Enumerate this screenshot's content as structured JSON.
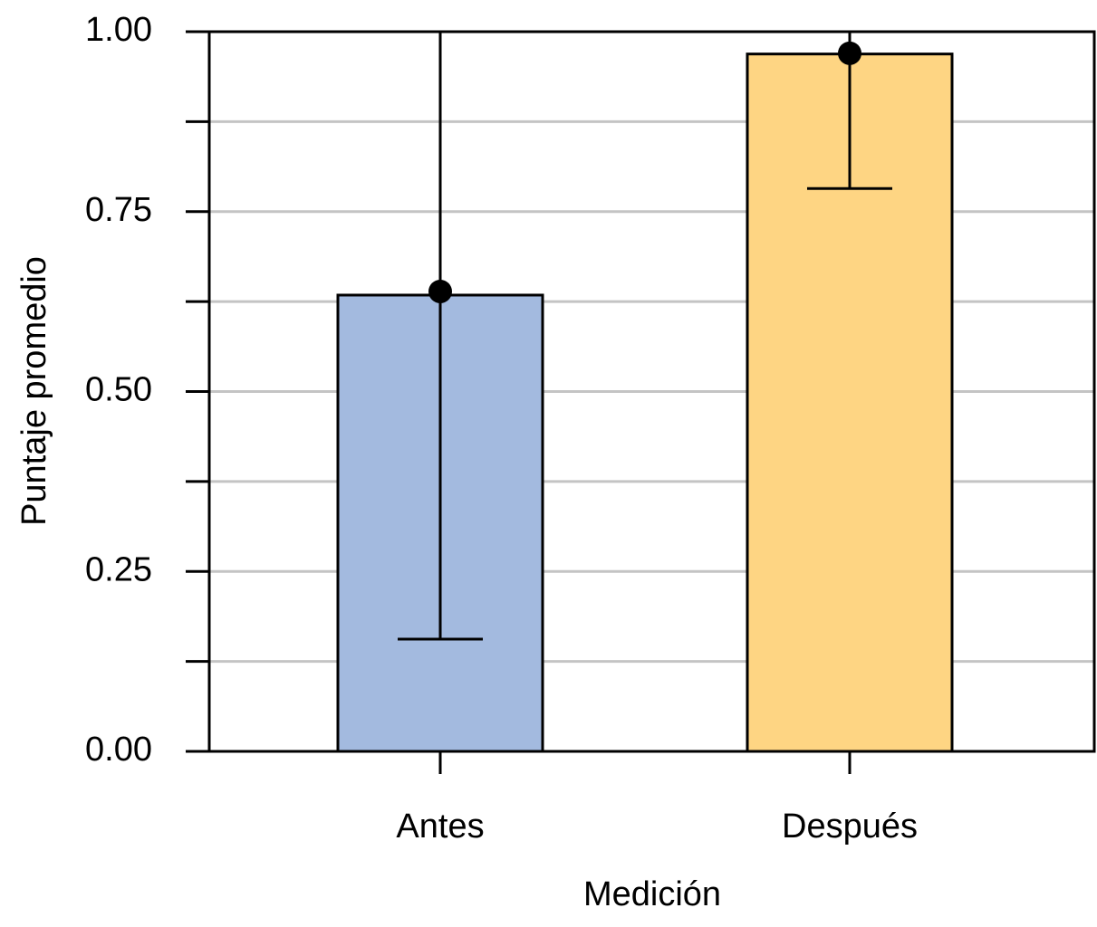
{
  "chart_data": {
    "type": "bar",
    "x_label": "Medición",
    "y_label": "Puntaje promedio",
    "categories": [
      "Antes",
      "Después"
    ],
    "values": [
      0.634,
      0.969
    ],
    "colors": [
      "#a3badf",
      "#fed583"
    ],
    "points": [
      0.639,
      0.97
    ],
    "error_low": [
      0.156,
      0.782
    ],
    "error_high": [
      1.0,
      1.0
    ],
    "ylim": [
      0,
      1
    ],
    "yticks": [
      {
        "value": 0,
        "label": "0.00"
      },
      {
        "value": 0.25,
        "label": "0.25"
      },
      {
        "value": 0.5,
        "label": "0.50"
      },
      {
        "value": 0.75,
        "label": "0.75"
      },
      {
        "value": 1,
        "label": "1.00"
      }
    ],
    "minor_yticks": [
      0.125,
      0.375,
      0.625,
      0.875
    ],
    "grid": true
  }
}
